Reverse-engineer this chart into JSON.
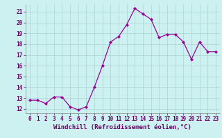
{
  "x": [
    0,
    1,
    2,
    3,
    4,
    5,
    6,
    7,
    8,
    9,
    10,
    11,
    12,
    13,
    14,
    15,
    16,
    17,
    18,
    19,
    20,
    21,
    22,
    23
  ],
  "y": [
    12.8,
    12.8,
    12.5,
    13.1,
    13.1,
    12.2,
    11.9,
    12.2,
    14.0,
    16.0,
    18.2,
    18.7,
    19.8,
    21.3,
    20.8,
    20.3,
    18.6,
    18.9,
    18.9,
    18.2,
    16.6,
    18.2,
    17.3,
    17.3
  ],
  "line_color": "#990099",
  "marker_color": "#990099",
  "bg_color": "#cdf0f0",
  "grid_color": "#aad4d4",
  "xlabel": "Windchill (Refroidissement éolien,°C)",
  "yticks": [
    12,
    13,
    14,
    15,
    16,
    17,
    18,
    19,
    20,
    21
  ],
  "xticks": [
    0,
    1,
    2,
    3,
    4,
    5,
    6,
    7,
    8,
    9,
    10,
    11,
    12,
    13,
    14,
    15,
    16,
    17,
    18,
    19,
    20,
    21,
    22,
    23
  ],
  "ylim": [
    11.6,
    21.7
  ],
  "xlim": [
    -0.5,
    23.5
  ],
  "tick_font_size": 5.5,
  "xlabel_font_size": 6.5
}
